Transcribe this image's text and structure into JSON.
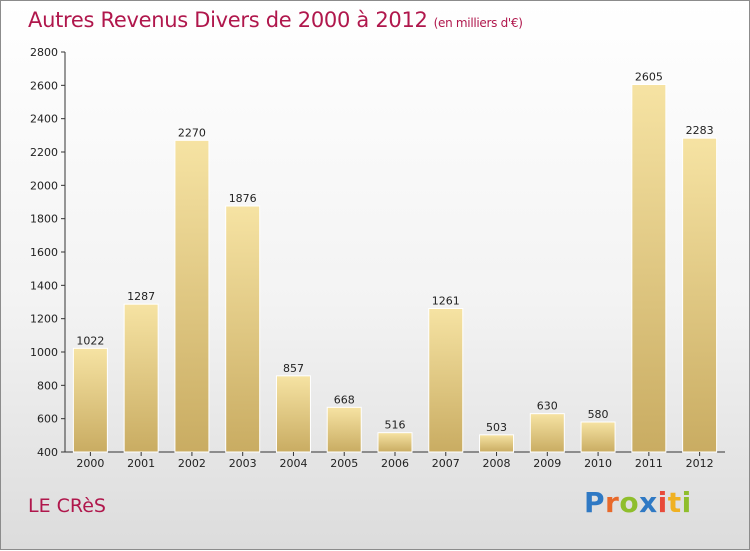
{
  "title": "Autres Revenus Divers de 2000 à 2012",
  "subtitle": "(en milliers d'€)",
  "commune": "LE CRèS",
  "logo_text": "Proxiti",
  "colors": {
    "title": "#b0174c",
    "bar_light": "#f6e3a3",
    "bar_dark": "#c9ac62",
    "axis": "#333333"
  },
  "chart_data": {
    "type": "bar",
    "title": "Autres Revenus Divers de 2000 à 2012",
    "subtitle": "(en milliers d'€)",
    "categories": [
      "2000",
      "2001",
      "2002",
      "2003",
      "2004",
      "2005",
      "2006",
      "2007",
      "2008",
      "2009",
      "2010",
      "2011",
      "2012"
    ],
    "values": [
      1022,
      1287,
      2270,
      1876,
      857,
      668,
      516,
      1261,
      503,
      630,
      580,
      2605,
      2283
    ],
    "ylim": [
      400,
      2800
    ],
    "yticks": [
      400,
      600,
      800,
      1000,
      1200,
      1400,
      1600,
      1800,
      2000,
      2200,
      2400,
      2600,
      2800
    ],
    "grid": false,
    "data_labels": true
  }
}
